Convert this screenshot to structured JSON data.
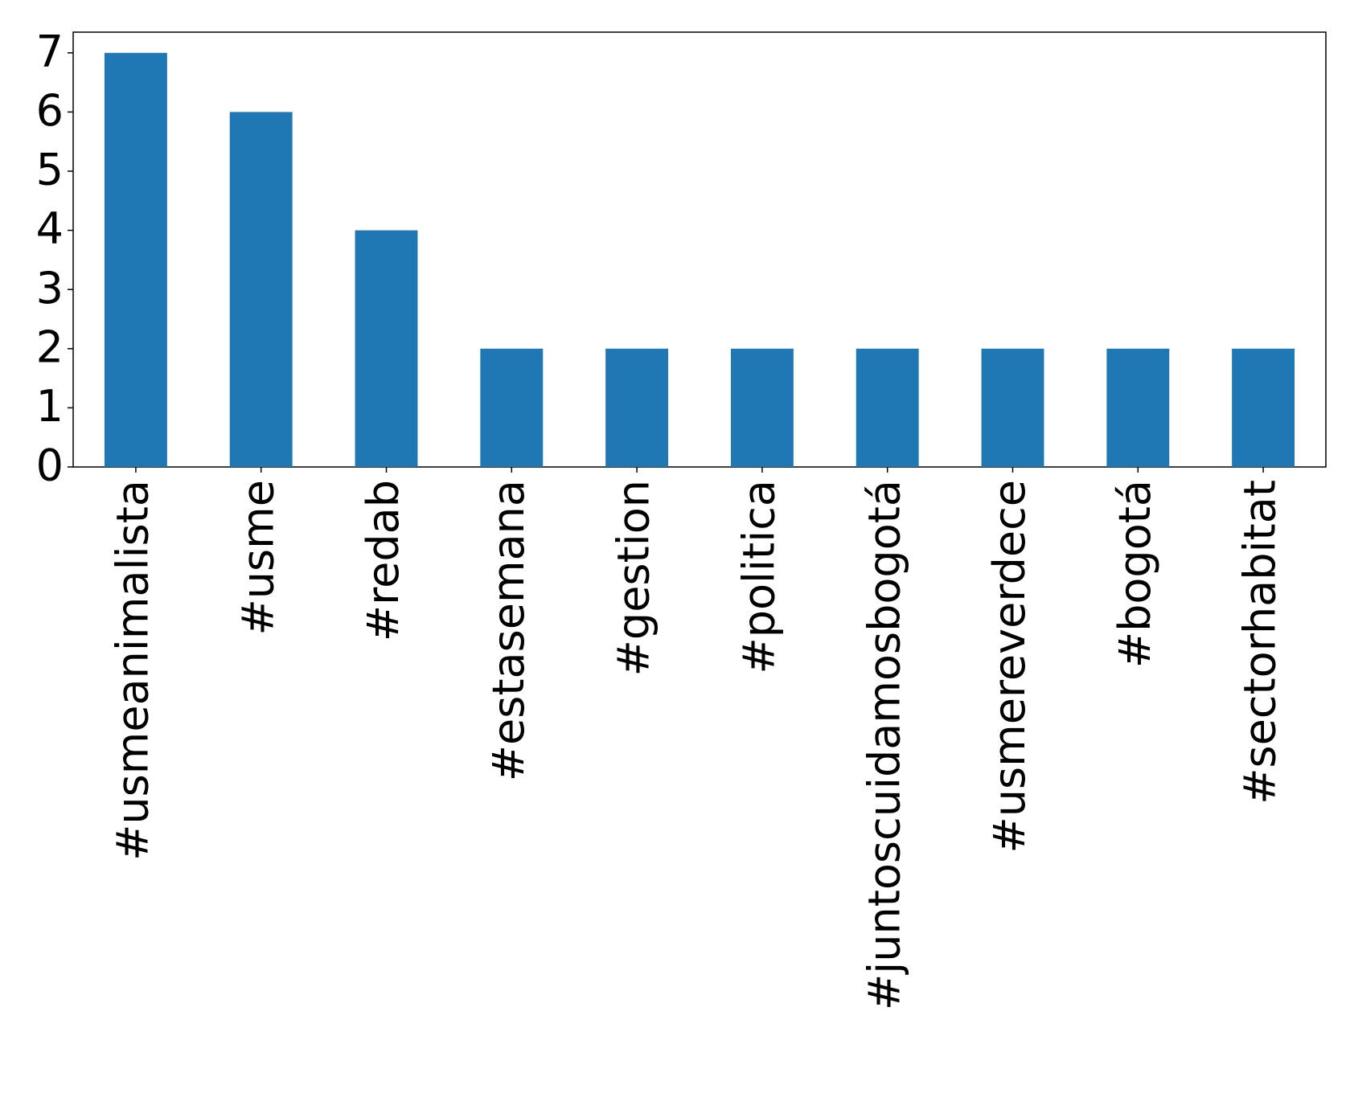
{
  "chart_data": {
    "type": "bar",
    "categories": [
      "#usmeanimalista",
      "#usme",
      "#redab",
      "#estasemana",
      "#gestion",
      "#politica",
      "#juntoscuidamosbogotá",
      "#usmereverdece",
      "#bogotá",
      "#sectorhabitat"
    ],
    "values": [
      7,
      6,
      4,
      2,
      2,
      2,
      2,
      2,
      2,
      2
    ],
    "color": "#1f77b4",
    "ylim": [
      0,
      7.35
    ],
    "yticks": [
      0,
      1,
      2,
      3,
      4,
      5,
      6,
      7
    ],
    "grid": false
  }
}
